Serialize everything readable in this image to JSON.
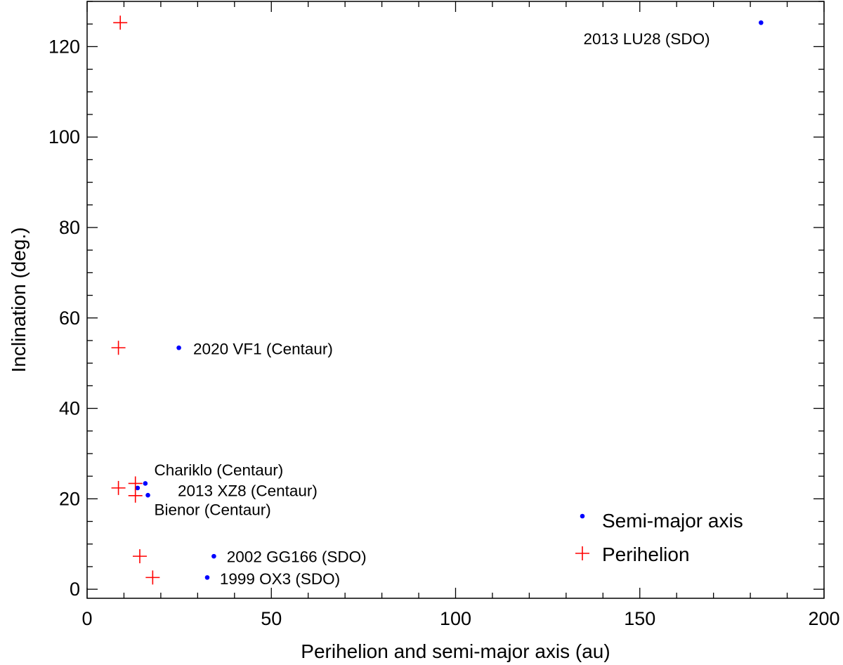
{
  "chart_data": {
    "type": "scatter",
    "xlabel": "Perihelion and semi-major axis (au)",
    "ylabel": "Inclination (deg.)",
    "xlim": [
      0,
      200
    ],
    "ylim": [
      -2,
      130
    ],
    "xticks": [
      0,
      50,
      100,
      150,
      200
    ],
    "yticks": [
      0,
      20,
      40,
      60,
      80,
      100,
      120
    ],
    "xminor_step": 10,
    "yminor_step": 5,
    "grid": false,
    "legend_position": "bottom-right",
    "series": [
      {
        "name": "Semi-major axis",
        "marker": "dot",
        "color": "#0000ff",
        "points": [
          {
            "x": 182.9,
            "y": 125.3
          },
          {
            "x": 24.9,
            "y": 53.4
          },
          {
            "x": 15.8,
            "y": 23.4
          },
          {
            "x": 13.7,
            "y": 22.4
          },
          {
            "x": 16.5,
            "y": 20.8
          },
          {
            "x": 34.4,
            "y": 7.3
          },
          {
            "x": 32.6,
            "y": 2.6
          }
        ]
      },
      {
        "name": "Perihelion",
        "marker": "plus",
        "color": "#ff0000",
        "points": [
          {
            "x": 9.0,
            "y": 125.3
          },
          {
            "x": 8.5,
            "y": 53.4
          },
          {
            "x": 13.1,
            "y": 23.4
          },
          {
            "x": 8.5,
            "y": 22.4
          },
          {
            "x": 13.1,
            "y": 20.7
          },
          {
            "x": 14.3,
            "y": 7.3
          },
          {
            "x": 17.8,
            "y": 2.6
          }
        ]
      }
    ],
    "annotations": [
      {
        "text": "2013 LU28 (SDO)",
        "x": 134.7,
        "y": 120.5
      },
      {
        "text": "2020 VF1 (Centaur)",
        "x": 28.8,
        "y": 52.0
      },
      {
        "text": "Chariklo (Centaur)",
        "x": 18.2,
        "y": 25.2
      },
      {
        "text": "2013 XZ8 (Centaur)",
        "x": 24.6,
        "y": 20.6
      },
      {
        "text": "Bienor (Centaur)",
        "x": 18.2,
        "y": 16.4
      },
      {
        "text": "2002 GG166 (SDO)",
        "x": 37.9,
        "y": 6.0
      },
      {
        "text": "1999 OX3 (SDO)",
        "x": 36.0,
        "y": 1.1
      }
    ]
  }
}
